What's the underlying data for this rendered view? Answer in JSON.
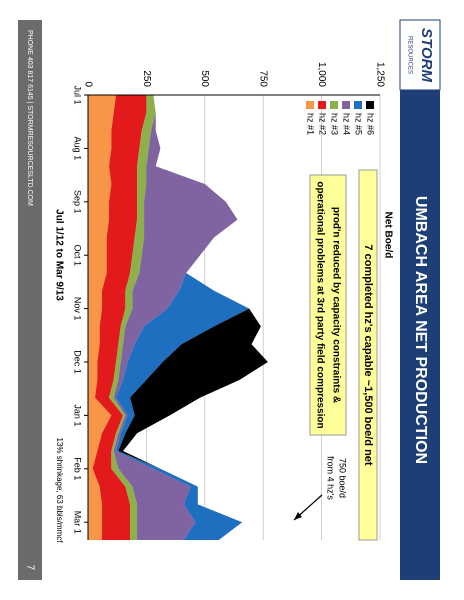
{
  "slide": {
    "title": "UMBACH AREA NET PRODUCTION",
    "logo": "STORM",
    "logo_sub": "RESOURCES",
    "footer": "PHONE 403 817 6145  |  STORMRESOURCESLTD.COM",
    "page": "7"
  },
  "chart_data": {
    "type": "stacked-area",
    "y_label": "Net Boe/d",
    "x_range_label": "Jul 1/12 to Mar 9/13",
    "annotations": [
      "7 completed hz's capable ~1,500 boe/d net",
      "prod'n reduced by capacity constraints &",
      "operational problems at 3rd party field compression",
      "750 boe/d",
      "from 4 hz's",
      "13% shrinkage, 63 bbls/mmcf"
    ],
    "categories": [
      "Jul 1",
      null,
      null,
      "Aug 1",
      null,
      null,
      "Sep 1",
      null,
      null,
      "Oct 1",
      null,
      null,
      "Nov 1",
      null,
      null,
      "Dec 1",
      null,
      null,
      "Jan 1",
      null,
      null,
      "Feb 1",
      null,
      null,
      "Mar 1",
      null
    ],
    "series": [
      {
        "name": "hz #1",
        "color": "#f79646",
        "values": [
          120,
          110,
          100,
          100,
          90,
          100,
          90,
          90,
          80,
          80,
          80,
          60,
          60,
          50,
          50,
          40,
          40,
          30,
          100,
          60,
          40,
          20,
          50,
          60,
          60,
          60
        ]
      },
      {
        "name": "hz #2",
        "color": "#e31a1c",
        "values": [
          130,
          140,
          130,
          120,
          120,
          110,
          120,
          120,
          120,
          110,
          100,
          100,
          100,
          90,
          80,
          80,
          70,
          60,
          50,
          60,
          60,
          80,
          110,
          120,
          120,
          120
        ]
      },
      {
        "name": "hz #3",
        "color": "#8db04a",
        "values": [
          30,
          40,
          40,
          40,
          40,
          40,
          30,
          30,
          40,
          40,
          40,
          30,
          30,
          20,
          20,
          20,
          20,
          20,
          10,
          10,
          10,
          30,
          30,
          30,
          30,
          30
        ]
      },
      {
        "name": "hz #4",
        "color": "#8064a2",
        "values": [
          0,
          0,
          20,
          50,
          40,
          250,
          350,
          400,
          300,
          250,
          200,
          200,
          150,
          80,
          50,
          30,
          20,
          10,
          10,
          10,
          10,
          150,
          250,
          200,
          250,
          200
        ]
      },
      {
        "name": "hz #5",
        "color": "#1f6fc0",
        "values": [
          0,
          0,
          0,
          0,
          0,
          0,
          0,
          0,
          0,
          0,
          0,
          150,
          350,
          300,
          200,
          150,
          100,
          60,
          30,
          20,
          10,
          30,
          30,
          60,
          200,
          150
        ]
      },
      {
        "name": "hz #6",
        "color": "#000000",
        "values": [
          0,
          0,
          0,
          0,
          0,
          0,
          0,
          0,
          0,
          0,
          0,
          0,
          0,
          200,
          300,
          450,
          400,
          300,
          150,
          50,
          20,
          0,
          0,
          0,
          0,
          0
        ]
      }
    ],
    "ylim": [
      0,
      1250
    ],
    "yticks": [
      0,
      250,
      500,
      {
        "value": 750,
        "label": "750"
      },
      {
        "value": 1000,
        "label": "1,000"
      },
      {
        "value": 1250,
        "label": "1,250"
      }
    ],
    "grid": true
  }
}
